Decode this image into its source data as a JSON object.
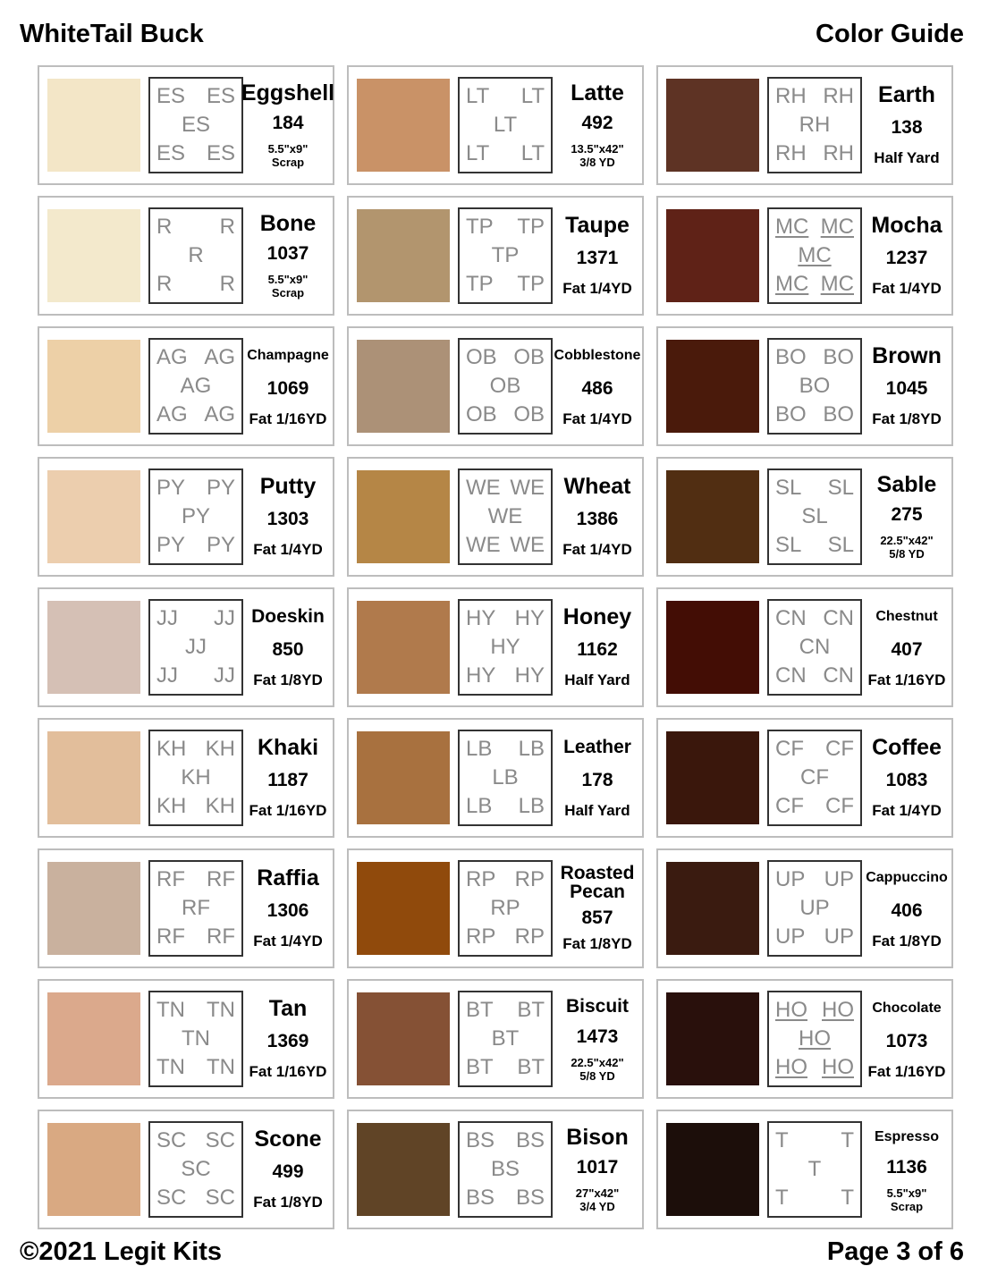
{
  "header": {
    "title": "WhiteTail Buck",
    "subtitle": "Color Guide"
  },
  "footer": {
    "copyright": "©2021 Legit Kits",
    "page": "Page 3 of 6"
  },
  "columns": [
    [
      {
        "name": "Eggshell",
        "number": "184",
        "size": [
          "5.5\"x9\"",
          "Scrap"
        ],
        "code": "ES",
        "color": "#f3e6c7"
      },
      {
        "name": "Bone",
        "number": "1037",
        "size": [
          "5.5\"x9\"",
          "Scrap"
        ],
        "code": "R",
        "color": "#f3e9cc"
      },
      {
        "name": "Champagne",
        "number": "1069",
        "size": [
          "Fat 1/16YD"
        ],
        "code": "AG",
        "color": "#edd0a7",
        "small_name": true
      },
      {
        "name": "Putty",
        "number": "1303",
        "size": [
          "Fat 1/4YD"
        ],
        "code": "PY",
        "color": "#ecceae"
      },
      {
        "name": "Doeskin",
        "number": "850",
        "size": [
          "Fat 1/8YD"
        ],
        "code": "JJ",
        "color": "#d5c0b5",
        "medium_name": true
      },
      {
        "name": "Khaki",
        "number": "1187",
        "size": [
          "Fat 1/16YD"
        ],
        "code": "KH",
        "color": "#e2be9b"
      },
      {
        "name": "Raffia",
        "number": "1306",
        "size": [
          "Fat 1/4YD"
        ],
        "code": "RF",
        "color": "#c9b19e"
      },
      {
        "name": "Tan",
        "number": "1369",
        "size": [
          "Fat 1/16YD"
        ],
        "code": "TN",
        "color": "#dba98c"
      },
      {
        "name": "Scone",
        "number": "499",
        "size": [
          "Fat 1/8YD"
        ],
        "code": "SC",
        "color": "#d9a982"
      }
    ],
    [
      {
        "name": "Latte",
        "number": "492",
        "size": [
          "13.5\"x42\"",
          "3/8 YD"
        ],
        "code": "LT",
        "color": "#c99267"
      },
      {
        "name": "Taupe",
        "number": "1371",
        "size": [
          "Fat 1/4YD"
        ],
        "code": "TP",
        "color": "#b2956e"
      },
      {
        "name": "Cobblestone",
        "number": "486",
        "size": [
          "Fat 1/4YD"
        ],
        "code": "OB",
        "color": "#ac9177",
        "small_name": true
      },
      {
        "name": "Wheat",
        "number": "1386",
        "size": [
          "Fat 1/4YD"
        ],
        "code": "WE",
        "color": "#b58646"
      },
      {
        "name": "Honey",
        "number": "1162",
        "size": [
          "Half Yard"
        ],
        "code": "HY",
        "color": "#b07a4c"
      },
      {
        "name": "Leather",
        "number": "178",
        "size": [
          "Half Yard"
        ],
        "code": "LB",
        "color": "#a8713f",
        "medium_name": true
      },
      {
        "name": "Roasted Pecan",
        "number": "857",
        "size": [
          "Fat 1/8YD"
        ],
        "code": "RP",
        "color": "#904a0c",
        "two_line": true
      },
      {
        "name": "Biscuit",
        "number": "1473",
        "size": [
          "22.5\"x42\"",
          "5/8 YD"
        ],
        "code": "BT",
        "color": "#855135",
        "medium_name": true
      },
      {
        "name": "Bison",
        "number": "1017",
        "size": [
          "27\"x42\"",
          "3/4 YD"
        ],
        "code": "BS",
        "color": "#604426"
      }
    ],
    [
      {
        "name": "Earth",
        "number": "138",
        "size": [
          "Half Yard"
        ],
        "code": "RH",
        "color": "#5e3324"
      },
      {
        "name": "Mocha",
        "number": "1237",
        "size": [
          "Fat 1/4YD"
        ],
        "code": "MC",
        "color": "#5f2217",
        "underline": true
      },
      {
        "name": "Brown",
        "number": "1045",
        "size": [
          "Fat 1/8YD"
        ],
        "code": "BO",
        "color": "#4a1a0b"
      },
      {
        "name": "Sable",
        "number": "275",
        "size": [
          "22.5\"x42\"",
          "5/8 YD"
        ],
        "code": "SL",
        "color": "#512e12"
      },
      {
        "name": "Chestnut",
        "number": "407",
        "size": [
          "Fat 1/16YD"
        ],
        "code": "CN",
        "color": "#430d05",
        "small_name": true
      },
      {
        "name": "Coffee",
        "number": "1083",
        "size": [
          "Fat 1/4YD"
        ],
        "code": "CF",
        "color": "#3a170c"
      },
      {
        "name": "Cappuccino",
        "number": "406",
        "size": [
          "Fat 1/8YD"
        ],
        "code": "UP",
        "color": "#3a1b10",
        "small_name": true
      },
      {
        "name": "Chocolate",
        "number": "1073",
        "size": [
          "Fat 1/16YD"
        ],
        "code": "HO",
        "color": "#29100c",
        "underline": true,
        "small_name": true
      },
      {
        "name": "Espresso",
        "number": "1136",
        "size": [
          "5.5\"x9\"",
          "Scrap"
        ],
        "code": "T",
        "color": "#1c0e0a",
        "small_name": true
      }
    ]
  ]
}
